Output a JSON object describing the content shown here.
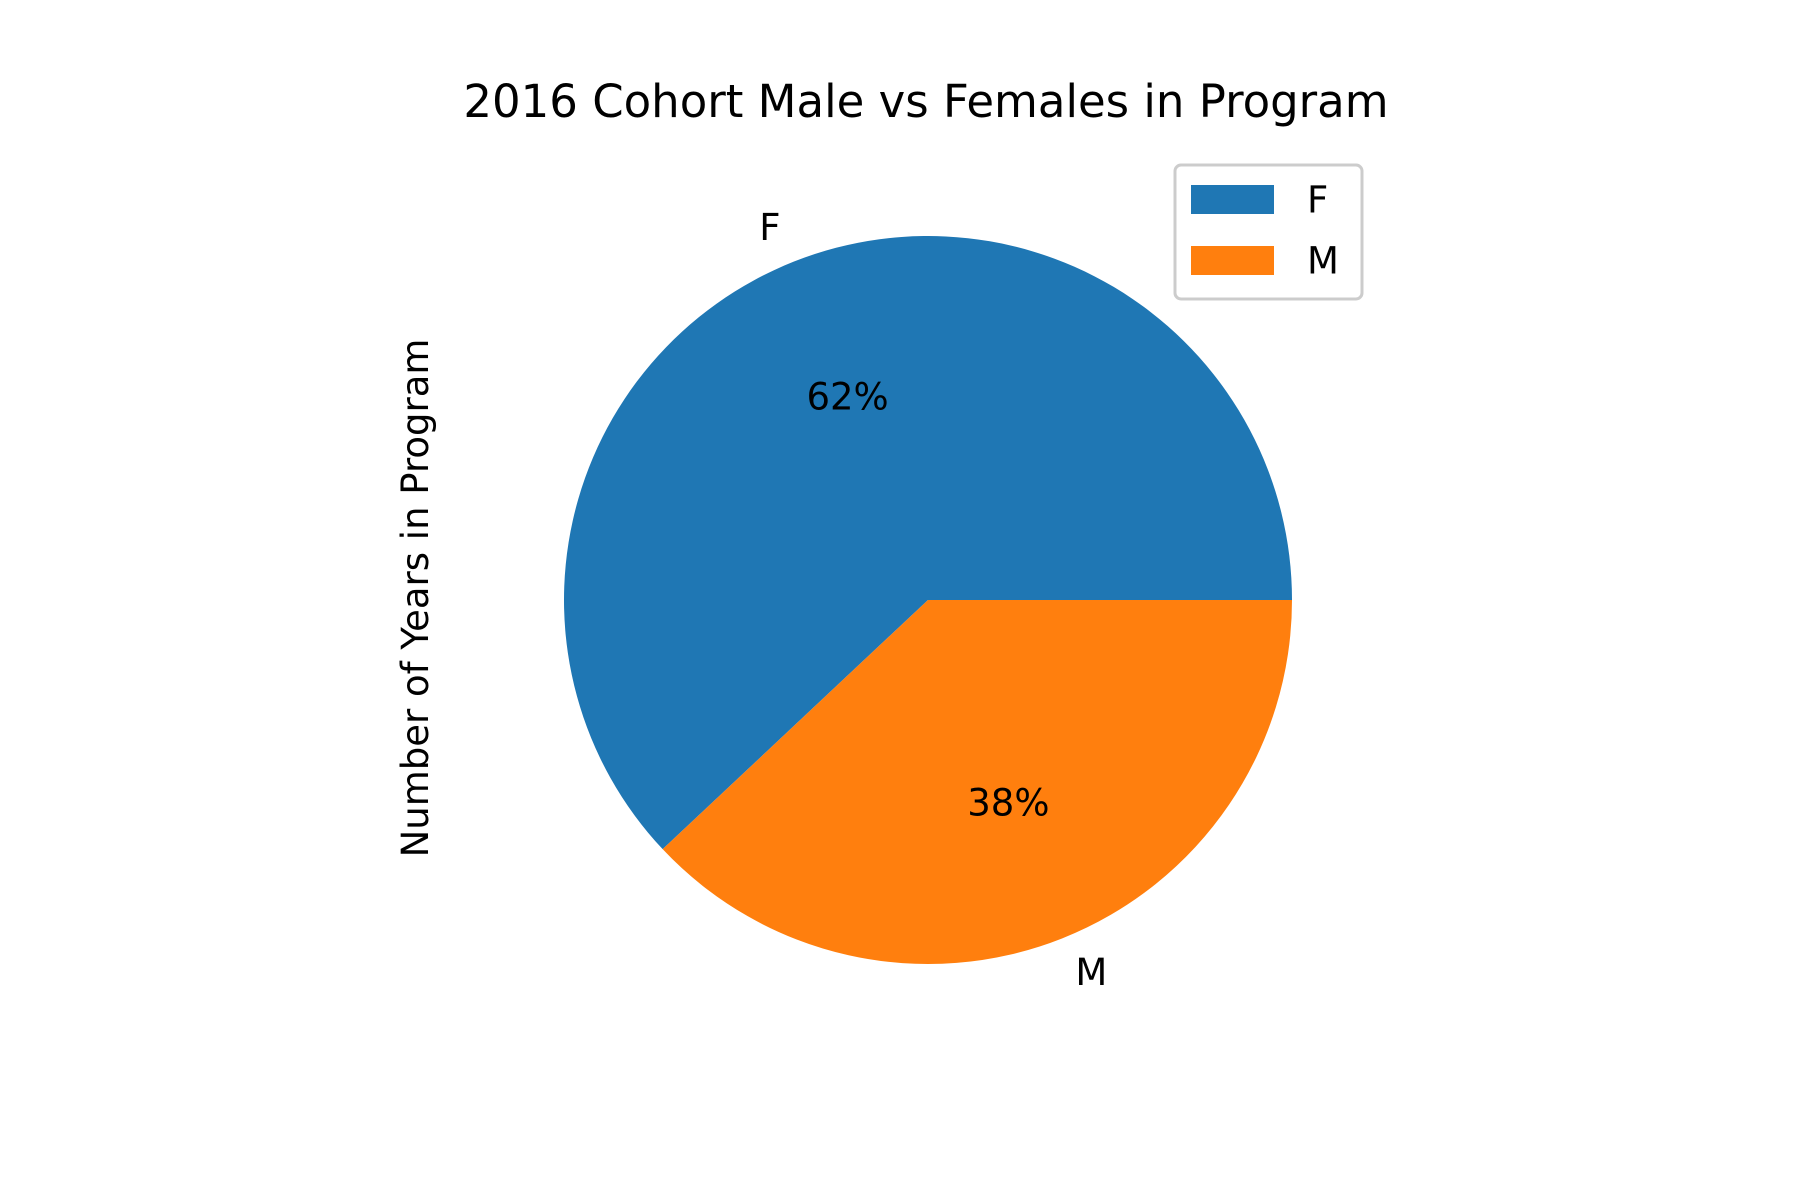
{
  "chart_data": {
    "type": "pie",
    "title": "2016 Cohort Male vs Females in Program",
    "ylabel": "Number of Years in Program",
    "start_angle_deg": 0,
    "direction": "counterclockwise",
    "slices": [
      {
        "label": "F",
        "value": 62,
        "pct_label": "62%",
        "color": "#1f77b4"
      },
      {
        "label": "M",
        "value": 38,
        "pct_label": "38%",
        "color": "#ff7f0e"
      }
    ],
    "legend": {
      "position": "top-right",
      "items": [
        {
          "label": "F",
          "color": "#1f77b4"
        },
        {
          "label": "M",
          "color": "#ff7f0e"
        }
      ]
    }
  }
}
